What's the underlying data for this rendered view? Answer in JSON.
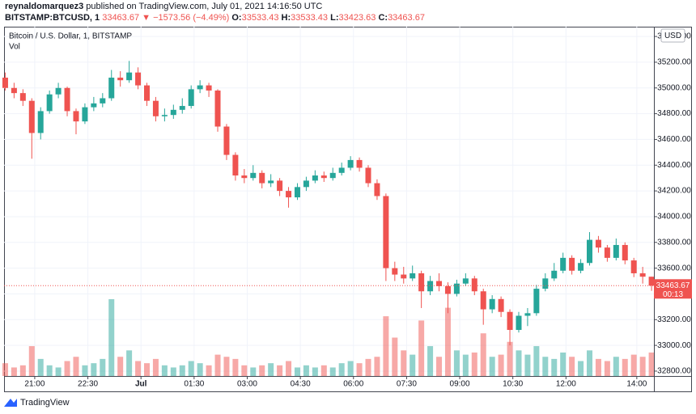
{
  "header": {
    "author": "reynaldomarquez3",
    "published_text": "published on TradingView.com, July 01, 2021 14:16:50 UTC",
    "symbol": "BITSTAMP:BTCUSD, 1",
    "change_text": "▼ −1573.56 (−4.49%)",
    "ohlc_labels": [
      "O:",
      "H:",
      "L:",
      "C:"
    ]
  },
  "footer": {
    "brand": "TradingView"
  },
  "chart_data": {
    "type": "candlestick",
    "title": "Bitcoin / U.S. Dollar, 1, BITSTAMP",
    "volume_label": "Vol",
    "currency": "USD",
    "countdown": "00:13",
    "up_color": "#26a69a",
    "down_color": "#ef5350",
    "volume_up_color": "rgba(38,166,154,0.5)",
    "volume_down_color": "rgba(239,83,80,0.5)",
    "grid": true,
    "xlim": [
      "20:08",
      "14:29"
    ],
    "xticks": [
      "21:00",
      "22:30",
      {
        "value": "00:00",
        "label": "Jul"
      },
      "01:30",
      "03:00",
      "04:30",
      "06:00",
      "07:30",
      "09:00",
      "10:30",
      "12:00",
      "14:00"
    ],
    "ylim": [
      32762,
      35476
    ],
    "yticks": [
      {
        "value": 32800,
        "label": "32800.00"
      },
      {
        "value": 33000,
        "label": "33000.00"
      },
      {
        "value": 33200,
        "label": "33200.00"
      },
      {
        "value": 33400,
        "label": "33400.00"
      },
      {
        "value": 33600,
        "label": "33600.00"
      },
      {
        "value": 33800,
        "label": "33800.00"
      },
      {
        "value": 34000,
        "label": "34000.00"
      },
      {
        "value": 34200,
        "label": "34200.00"
      },
      {
        "value": 34400,
        "label": "34400.00"
      },
      {
        "value": 34600,
        "label": "34600.00"
      },
      {
        "value": 34800,
        "label": "34800.00"
      },
      {
        "value": 35000,
        "label": "35000.00"
      },
      {
        "value": 35200,
        "label": "35200.00"
      },
      {
        "value": 35400,
        "label": "35400.00"
      }
    ],
    "x": [
      "20:10",
      "20:25",
      "20:40",
      "20:55",
      "21:10",
      "21:25",
      "21:40",
      "21:55",
      "22:10",
      "22:25",
      "22:40",
      "22:55",
      "23:10",
      "23:25",
      "23:40",
      "23:55",
      "00:10",
      "00:25",
      "00:40",
      "00:55",
      "01:10",
      "01:25",
      "01:40",
      "01:55",
      "02:10",
      "02:25",
      "02:40",
      "02:55",
      "03:10",
      "03:25",
      "03:40",
      "03:55",
      "04:10",
      "04:25",
      "04:40",
      "04:55",
      "05:10",
      "05:25",
      "05:40",
      "05:55",
      "06:10",
      "06:25",
      "06:40",
      "06:55",
      "07:10",
      "07:25",
      "07:40",
      "07:55",
      "08:10",
      "08:25",
      "08:40",
      "08:55",
      "09:10",
      "09:25",
      "09:40",
      "09:55",
      "10:10",
      "10:25",
      "10:40",
      "10:55",
      "11:10",
      "11:25",
      "11:40",
      "11:55",
      "12:10",
      "12:25",
      "12:40",
      "12:55",
      "13:10",
      "13:25",
      "13:40",
      "13:55",
      "14:10",
      "14:25"
    ],
    "open": [
      35080,
      35000,
      34960,
      34900,
      34650,
      34820,
      34950,
      35000,
      34820,
      34740,
      34850,
      34880,
      34920,
      35080,
      35060,
      35120,
      35020,
      34900,
      34780,
      34790,
      34830,
      34860,
      34990,
      35020,
      34980,
      34700,
      34480,
      34320,
      34300,
      34340,
      34260,
      34280,
      34200,
      34150,
      34230,
      34280,
      34320,
      34300,
      34340,
      34380,
      34440,
      34380,
      34260,
      34160,
      33600,
      33550,
      33520,
      33560,
      33420,
      33500,
      33460,
      33400,
      33480,
      33520,
      33420,
      33280,
      33360,
      33260,
      33120,
      33230,
      33250,
      33440,
      33520,
      33580,
      33680,
      33580,
      33640,
      33820,
      33760,
      33680,
      33780,
      33660,
      33560,
      33533.43
    ],
    "high": [
      35120,
      35040,
      34990,
      34920,
      34850,
      34980,
      35040,
      35010,
      34840,
      34880,
      34930,
      34960,
      35140,
      35130,
      35210,
      35160,
      35040,
      34930,
      34840,
      34870,
      34920,
      35020,
      35060,
      35040,
      34990,
      34720,
      34500,
      34370,
      34400,
      34360,
      34330,
      34300,
      34230,
      34260,
      34310,
      34360,
      34350,
      34380,
      34420,
      34470,
      34460,
      34400,
      34290,
      34180,
      33650,
      33610,
      33620,
      33580,
      33540,
      33560,
      33490,
      33510,
      33560,
      33540,
      33440,
      33390,
      33380,
      33280,
      33260,
      33290,
      33470,
      33560,
      33640,
      33720,
      33700,
      33670,
      33880,
      33850,
      33780,
      33830,
      33800,
      33680,
      33610,
      33533.43
    ],
    "low": [
      34980,
      34920,
      34860,
      34450,
      34600,
      34800,
      34920,
      34780,
      34640,
      34720,
      34820,
      34850,
      34900,
      35010,
      35040,
      34990,
      34860,
      34740,
      34740,
      34760,
      34800,
      34840,
      34960,
      34930,
      34660,
      34440,
      34280,
      34260,
      34280,
      34220,
      34230,
      34160,
      34070,
      34130,
      34200,
      34260,
      34270,
      34280,
      34320,
      34360,
      34350,
      34230,
      34130,
      33500,
      33500,
      33480,
      33500,
      33290,
      33390,
      33420,
      33250,
      33380,
      33460,
      33390,
      33160,
      33250,
      33220,
      33000,
      33100,
      33150,
      33230,
      33420,
      33500,
      33560,
      33550,
      33560,
      33620,
      33720,
      33650,
      33660,
      33630,
      33530,
      33480,
      33423.63
    ],
    "close": [
      35000,
      34960,
      34900,
      34650,
      34820,
      34950,
      35000,
      34820,
      34740,
      34850,
      34880,
      34920,
      35080,
      35060,
      35120,
      35020,
      34900,
      34780,
      34790,
      34830,
      34860,
      34990,
      35020,
      34980,
      34700,
      34480,
      34320,
      34300,
      34340,
      34260,
      34280,
      34200,
      34150,
      34230,
      34280,
      34320,
      34300,
      34340,
      34380,
      34440,
      34380,
      34260,
      34160,
      33600,
      33550,
      33520,
      33560,
      33420,
      33500,
      33460,
      33400,
      33480,
      33520,
      33420,
      33280,
      33360,
      33260,
      33120,
      33230,
      33250,
      33440,
      33520,
      33580,
      33680,
      33580,
      33640,
      33820,
      33760,
      33680,
      33780,
      33660,
      33560,
      33533.43,
      33463.67
    ],
    "volume": [
      6,
      4,
      5,
      14,
      8,
      5,
      4,
      7,
      9,
      5,
      6,
      8,
      36,
      9,
      12,
      7,
      6,
      8,
      5,
      4,
      5,
      7,
      6,
      5,
      10,
      9,
      8,
      5,
      4,
      5,
      6,
      5,
      7,
      4,
      5,
      4,
      5,
      4,
      6,
      7,
      6,
      8,
      9,
      28,
      18,
      12,
      10,
      26,
      14,
      9,
      32,
      12,
      10,
      11,
      20,
      9,
      10,
      16,
      12,
      10,
      14,
      9,
      8,
      11,
      9,
      7,
      12,
      8,
      7,
      9,
      8,
      10,
      9,
      11
    ]
  }
}
